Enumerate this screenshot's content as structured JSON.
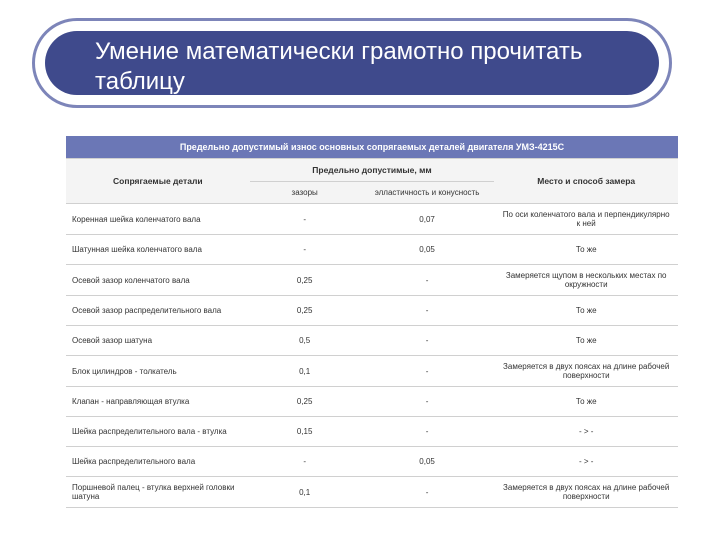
{
  "colors": {
    "banner_border": "#7d85b9",
    "banner_fill": "#3f4a8c",
    "caption_bg": "#6b77b6",
    "text": "#333333"
  },
  "title": "Умение математически грамотно прочитать таблицу",
  "caption": "Предельно допустимый износ основных сопрягаемых деталей двигателя УМЗ-4215С",
  "headers": {
    "col1": "Сопрягаемые детали",
    "col2span": "Предельно допустимые, мм",
    "col4": "Место и способ замера",
    "sub_gap": "зазоры",
    "sub_elp": "элластичность и конусность"
  },
  "rows": [
    {
      "name": "Коренная шейка коленчатого вала",
      "gap": "-",
      "elp": "0,07",
      "meas": "По оси коленчатого вала и перпендикулярно к ней"
    },
    {
      "name": "Шатунная шейка коленчатого вала",
      "gap": "-",
      "elp": "0,05",
      "meas": "То же"
    },
    {
      "name": "Осевой зазор коленчатого вала",
      "gap": "0,25",
      "elp": "-",
      "meas": "Замеряется щупом в нескольких местах по окружности"
    },
    {
      "name": "Осевой зазор распределительного вала",
      "gap": "0,25",
      "elp": "-",
      "meas": "То же"
    },
    {
      "name": "Осевой зазор шатуна",
      "gap": "0,5",
      "elp": "-",
      "meas": "То же"
    },
    {
      "name": "Блок цилиндров - толкатель",
      "gap": "0,1",
      "elp": "-",
      "meas": "Замеряется в двух поясах на длине рабочей поверхности"
    },
    {
      "name": "Клапан - направляющая втулка",
      "gap": "0,25",
      "elp": "-",
      "meas": "То же"
    },
    {
      "name": "Шейка распределительного вала - втулка",
      "gap": "0,15",
      "elp": "-",
      "meas": "- > -"
    },
    {
      "name": "Шейка распределительного вала",
      "gap": "-",
      "elp": "0,05",
      "meas": "- > -"
    },
    {
      "name": "Поршневой палец - втулка верхней головки шатуна",
      "gap": "0,1",
      "elp": "-",
      "meas": "Замеряется в двух поясах на длине рабочей поверхности"
    }
  ]
}
